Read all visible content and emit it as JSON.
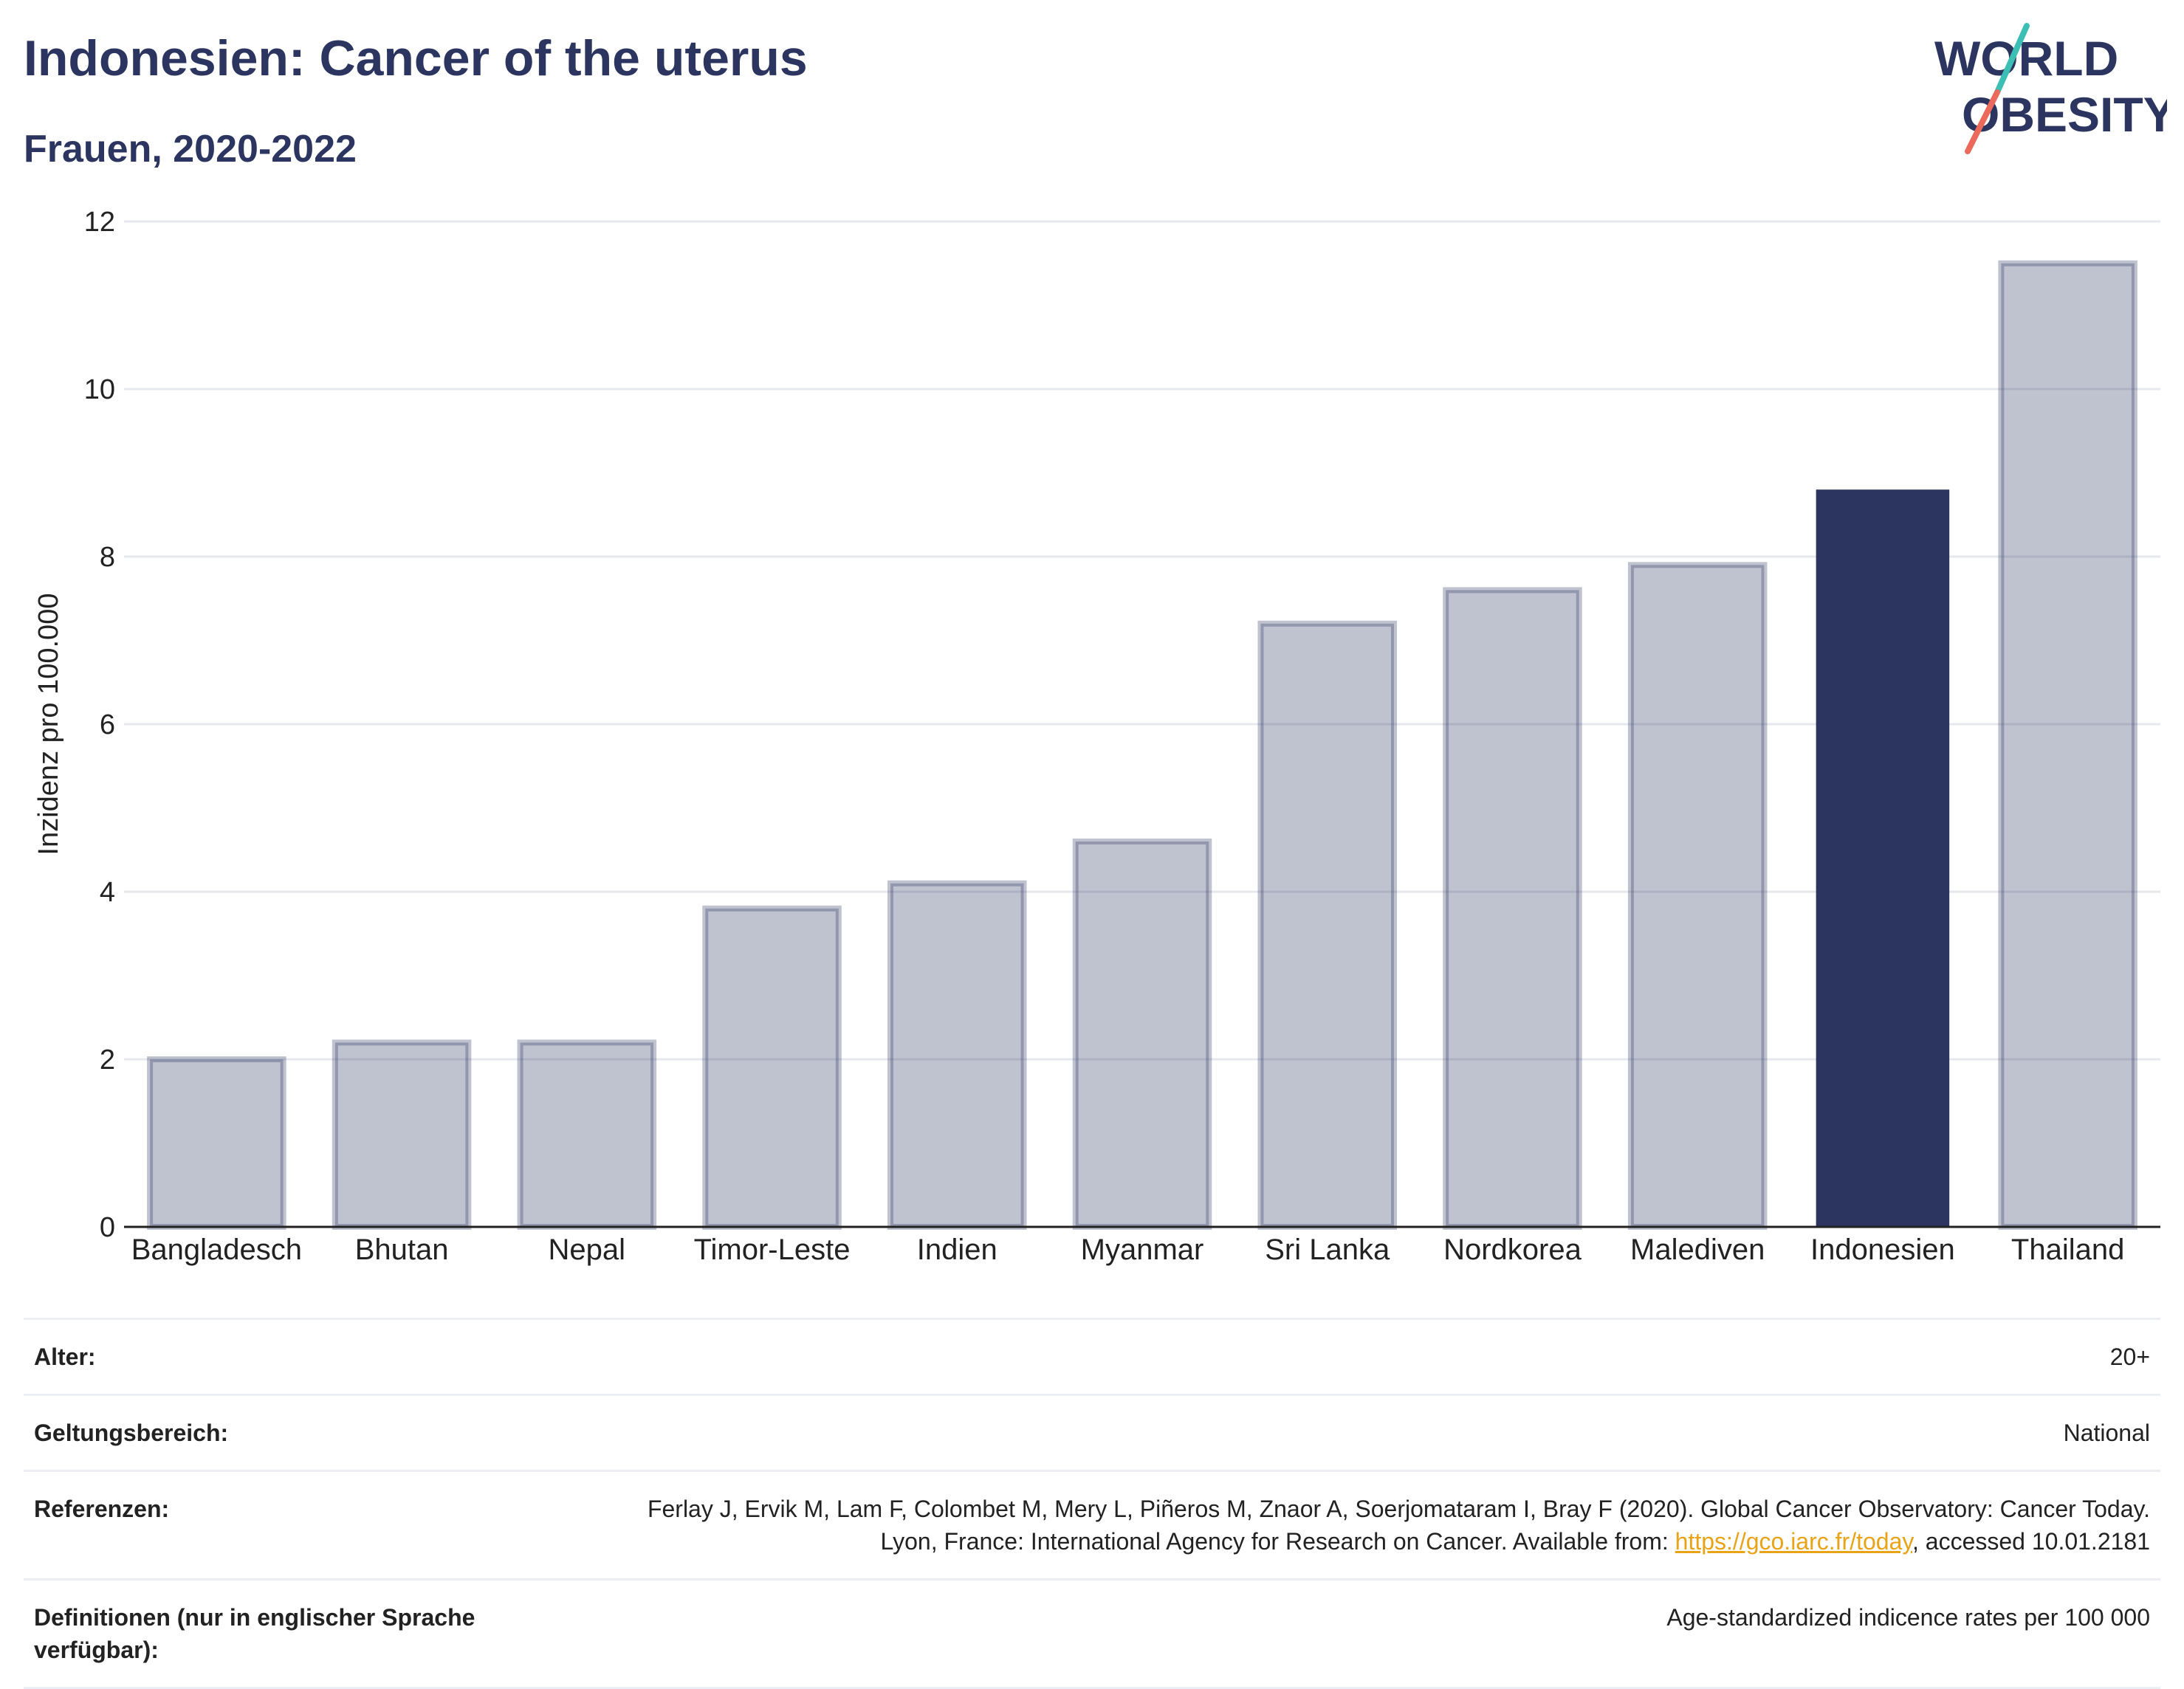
{
  "header": {
    "title": "Indonesien: Cancer of the uterus",
    "subtitle": "Frauen, 2020-2022"
  },
  "logo": {
    "line1": "WORLD",
    "line2": "OBESITY",
    "colors": {
      "text": "#2b3560",
      "slash_teal": "#3bbfb5",
      "slash_coral": "#ec6a5c"
    }
  },
  "colors": {
    "bar_default": "#2b3560",
    "bar_highlight": "#2b3560",
    "title": "#2b3560",
    "link": "#e8a317"
  },
  "chart_data": {
    "type": "bar",
    "categories": [
      "Bangladesch",
      "Bhutan",
      "Nepal",
      "Timor-Leste",
      "Indien",
      "Myanmar",
      "Sri Lanka",
      "Nordkorea",
      "Malediven",
      "Indonesien",
      "Thailand"
    ],
    "values": [
      2.0,
      2.2,
      2.2,
      3.8,
      4.1,
      4.6,
      7.2,
      7.6,
      7.9,
      8.8,
      11.5
    ],
    "highlight": "Indonesien",
    "ylabel": "Inzidenz pro 100.000",
    "ylim": [
      0,
      12
    ],
    "yticks": [
      0,
      2,
      4,
      6,
      8,
      10,
      12
    ],
    "grid": true
  },
  "meta": {
    "rows": [
      {
        "label": "Alter:",
        "value": "20+"
      },
      {
        "label": "Geltungsbereich:",
        "value": "National"
      },
      {
        "label": "Referenzen:",
        "value_pre": "Ferlay J, Ervik M, Lam F, Colombet M, Mery L, Piñeros M, Znaor A, Soerjomataram I, Bray F (2020). Global Cancer Observatory: Cancer Today. Lyon, France: International Agency for Research on Cancer. Available from: ",
        "link": "https://gco.iarc.fr/today",
        "value_post": ", accessed 10.01.2181"
      },
      {
        "label": "Definitionen (nur in englischer Sprache verfügbar):",
        "value": "Age-standardized indicence rates per 100 000"
      }
    ]
  }
}
